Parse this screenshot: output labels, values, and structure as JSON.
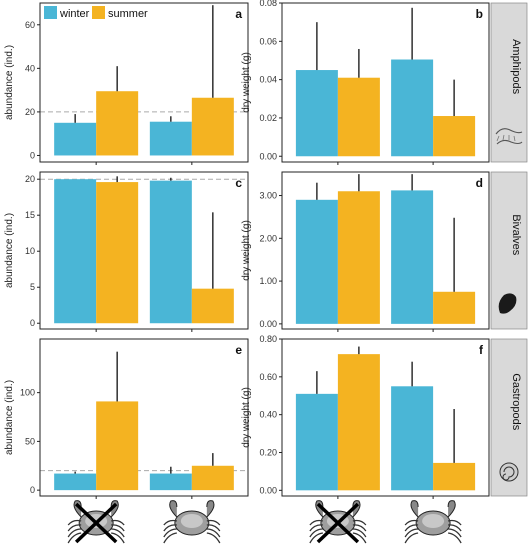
{
  "legend": {
    "placement": "top-left",
    "items": [
      {
        "label": "winter",
        "color": "#4ab6d6"
      },
      {
        "label": "summer",
        "color": "#f4b321"
      }
    ]
  },
  "colors": {
    "winter": "#4ab6d6",
    "summer": "#f4b321",
    "strip": "#d9d9d9",
    "reference_line": "#aaaaaa"
  },
  "x_categories": [
    {
      "icon": "crab-crossed-icon"
    },
    {
      "icon": "crab-icon"
    }
  ],
  "rows": [
    {
      "strip_label": "Amphipods",
      "strip_icon": "amphipod-icon"
    },
    {
      "strip_label": "Bivalves",
      "strip_icon": "mussel-icon"
    },
    {
      "strip_label": "Gastropods",
      "strip_icon": "snail-icon"
    }
  ],
  "chart_data": [
    {
      "type": "bar",
      "panel": "a",
      "ylabel": "abundance (ind.)",
      "ylim": [
        -3,
        70
      ],
      "yticks": [
        0,
        20,
        40,
        60
      ],
      "tick_decimals": 0,
      "reference_line": 20,
      "series": [
        {
          "name": "winter",
          "values": [
            15,
            15.5
          ],
          "errors": [
            19,
            18
          ]
        },
        {
          "name": "summer",
          "values": [
            29.5,
            26.5
          ],
          "errors": [
            41,
            69
          ]
        }
      ]
    },
    {
      "type": "bar",
      "panel": "b",
      "ylabel": "dry weight (g)",
      "ylim": [
        -0.003,
        0.08
      ],
      "yticks": [
        0.0,
        0.02,
        0.04,
        0.06,
        0.08
      ],
      "tick_decimals": 2,
      "series": [
        {
          "name": "winter",
          "values": [
            0.045,
            0.0505
          ],
          "errors": [
            0.07,
            0.0775
          ]
        },
        {
          "name": "summer",
          "values": [
            0.041,
            0.021
          ],
          "errors": [
            0.056,
            0.04
          ]
        }
      ]
    },
    {
      "type": "bar",
      "panel": "c",
      "ylabel": "abundance (ind.)",
      "ylim": [
        -0.8,
        21
      ],
      "yticks": [
        0,
        5,
        10,
        15,
        20
      ],
      "tick_decimals": 0,
      "reference_line": 20,
      "series": [
        {
          "name": "winter",
          "values": [
            20,
            19.8
          ],
          "errors": [
            20,
            20.2
          ]
        },
        {
          "name": "summer",
          "values": [
            19.6,
            4.8
          ],
          "errors": [
            20.4,
            15.4
          ]
        }
      ]
    },
    {
      "type": "bar",
      "panel": "d",
      "ylabel": "dry weight (g)",
      "ylim": [
        -0.12,
        3.55
      ],
      "yticks": [
        0.0,
        1.0,
        2.0,
        3.0
      ],
      "tick_decimals": 2,
      "series": [
        {
          "name": "winter",
          "values": [
            2.9,
            3.12
          ],
          "errors": [
            3.3,
            3.5
          ]
        },
        {
          "name": "summer",
          "values": [
            3.1,
            0.75
          ],
          "errors": [
            3.5,
            2.48
          ]
        }
      ]
    },
    {
      "type": "bar",
      "panel": "e",
      "ylabel": "abundance (ind.)",
      "ylim": [
        -6,
        155
      ],
      "yticks": [
        0,
        50,
        100
      ],
      "tick_decimals": 0,
      "reference_line": 20,
      "series": [
        {
          "name": "winter",
          "values": [
            17,
            17
          ],
          "errors": [
            19,
            24
          ]
        },
        {
          "name": "summer",
          "values": [
            91,
            25
          ],
          "errors": [
            142,
            38
          ]
        }
      ]
    },
    {
      "type": "bar",
      "panel": "f",
      "ylabel": "dry weight (g)",
      "ylim": [
        -0.03,
        0.8
      ],
      "yticks": [
        0.0,
        0.2,
        0.4,
        0.6,
        0.8
      ],
      "tick_decimals": 2,
      "series": [
        {
          "name": "winter",
          "values": [
            0.51,
            0.55
          ],
          "errors": [
            0.63,
            0.68
          ]
        },
        {
          "name": "summer",
          "values": [
            0.72,
            0.145
          ],
          "errors": [
            0.76,
            0.43
          ]
        }
      ]
    }
  ]
}
